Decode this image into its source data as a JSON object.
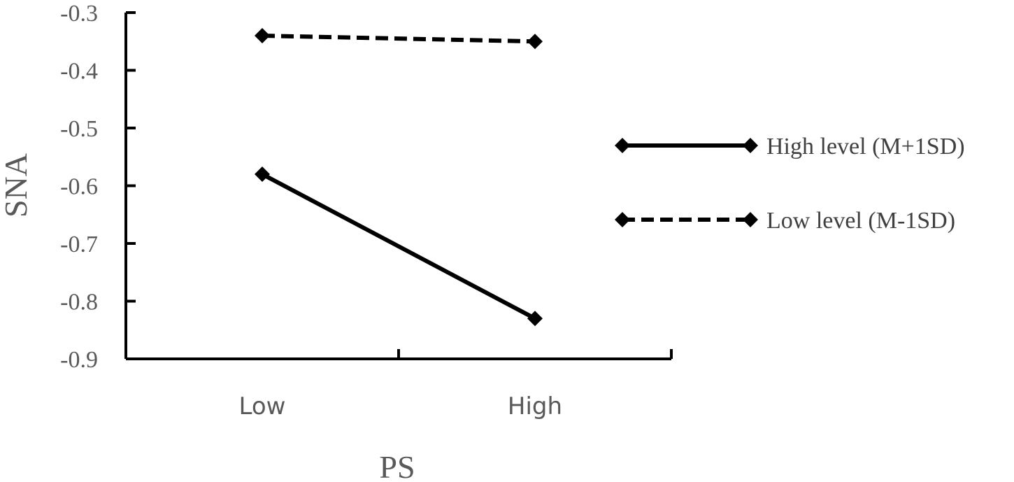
{
  "chart_data": {
    "type": "line",
    "xlabel": "PS",
    "ylabel": "SNA",
    "categories": [
      "Low",
      "High"
    ],
    "ylim": [
      -0.9,
      -0.3
    ],
    "yticks": [
      -0.3,
      -0.4,
      -0.5,
      -0.6,
      -0.7,
      -0.8,
      -0.9
    ],
    "ytick_labels": [
      "-0.3",
      "-0.4",
      "-0.5",
      "-0.6",
      "-0.7",
      "-0.8",
      "-0.9"
    ],
    "grid": false,
    "legend_position": "right",
    "series": [
      {
        "name": "High level (M+1SD)",
        "values": [
          -0.58,
          -0.83
        ],
        "line_style": "solid",
        "marker": "diamond",
        "color": "#000000"
      },
      {
        "name": "Low level (M-1SD)",
        "values": [
          -0.34,
          -0.35
        ],
        "line_style": "dashed",
        "marker": "diamond",
        "color": "#000000"
      }
    ]
  }
}
